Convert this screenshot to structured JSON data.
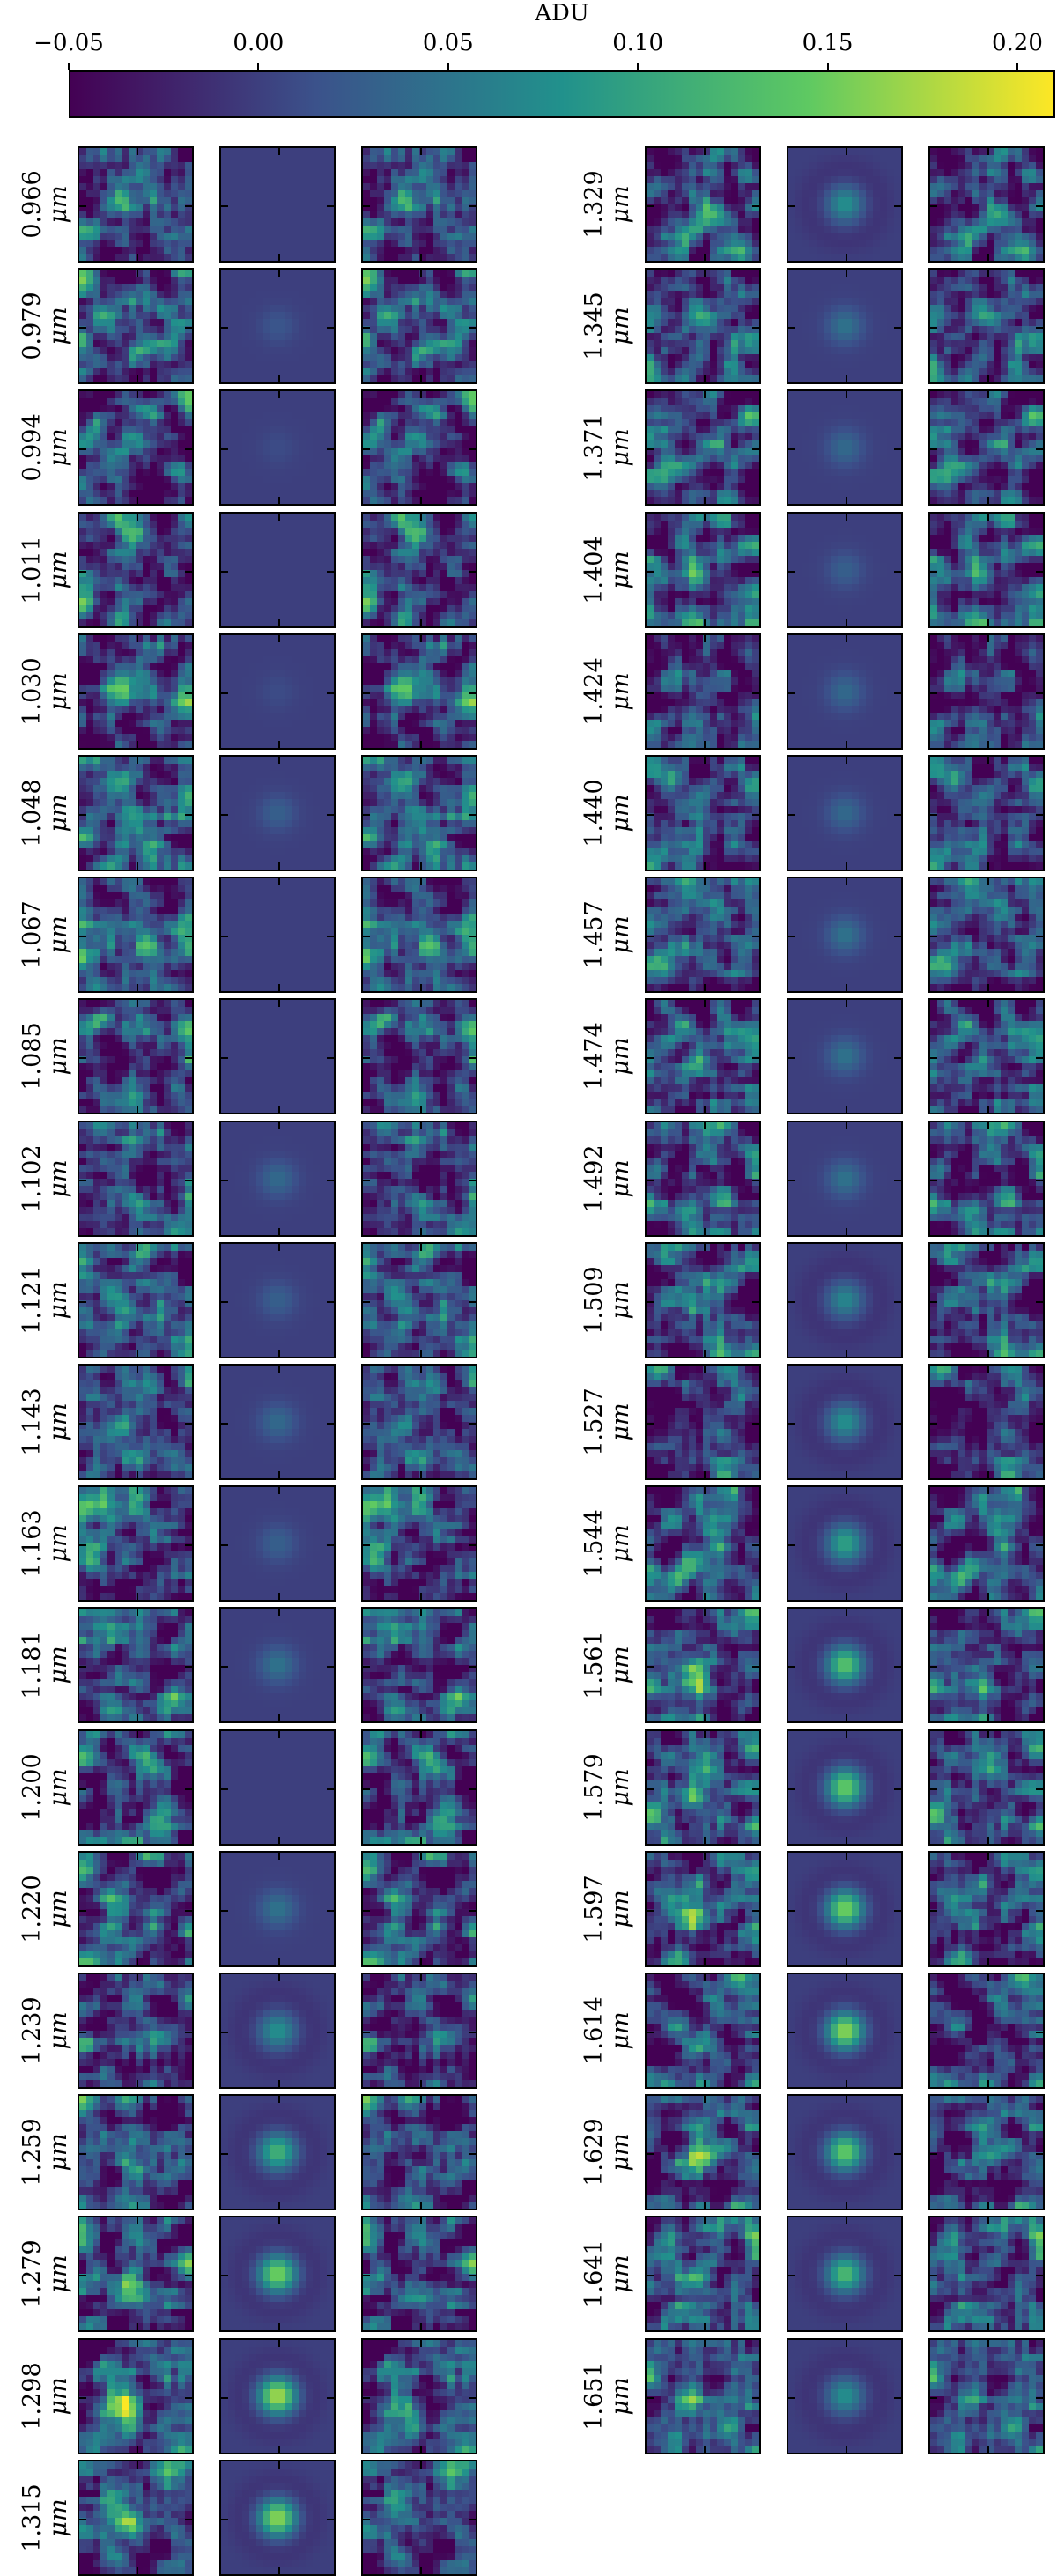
{
  "colorbar": {
    "label": "ADU",
    "ticks": [
      "−0.05",
      "0.00",
      "0.05",
      "0.10",
      "0.15",
      "0.20"
    ],
    "tick_values": [
      -0.05,
      0.0,
      0.05,
      0.1,
      0.15,
      0.2
    ],
    "vmin": -0.05,
    "vmax": 0.21,
    "colormap": "viridis",
    "colors": [
      "#440154",
      "#3b528b",
      "#21918c",
      "#5ec962",
      "#fde725"
    ]
  },
  "unit": "μm",
  "left_column": {
    "wavelengths": [
      "0.966",
      "0.979",
      "0.994",
      "1.011",
      "1.030",
      "1.048",
      "1.067",
      "1.085",
      "1.102",
      "1.121",
      "1.143",
      "1.163",
      "1.181",
      "1.200",
      "1.220",
      "1.239",
      "1.259",
      "1.279",
      "1.298",
      "1.315"
    ],
    "model_peak": [
      0.0,
      0.02,
      0.01,
      0.0,
      0.01,
      0.03,
      0.0,
      0.0,
      0.04,
      0.03,
      0.04,
      0.03,
      0.05,
      0.0,
      0.05,
      0.08,
      0.12,
      0.16,
      0.18,
      0.17
    ]
  },
  "right_column": {
    "wavelengths": [
      "1.329",
      "1.345",
      "1.371",
      "1.404",
      "1.424",
      "1.440",
      "1.457",
      "1.474",
      "1.492",
      "1.509",
      "1.527",
      "1.544",
      "1.561",
      "1.579",
      "1.597",
      "1.614",
      "1.629",
      "1.641",
      "1.651"
    ],
    "model_peak": [
      0.08,
      0.05,
      0.04,
      0.03,
      0.04,
      0.04,
      0.05,
      0.05,
      0.05,
      0.07,
      0.08,
      0.1,
      0.14,
      0.15,
      0.16,
      0.17,
      0.15,
      0.13,
      0.08
    ]
  }
}
